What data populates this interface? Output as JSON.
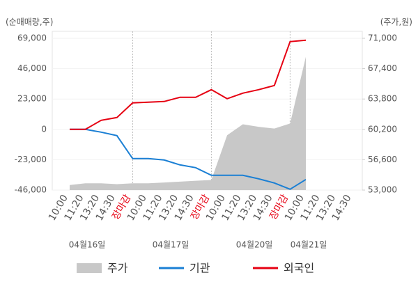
{
  "chart_data": {
    "type": "line",
    "y_axis_label": "(순매매량,주)",
    "y2_axis_label": "(주가,원)",
    "categories": [
      "10:00",
      "11:20",
      "13:20",
      "14:30",
      "장마감",
      "10:00",
      "11:20",
      "13:20",
      "14:30",
      "장마감",
      "10:00",
      "11:20",
      "13:20",
      "14:30",
      "장마감",
      "10:00",
      "11:20",
      "13:20",
      "14:30"
    ],
    "x_tick_label_colors": [
      "#555555",
      "#555555",
      "#555555",
      "#555555",
      "#e60012",
      "#555555",
      "#555555",
      "#555555",
      "#555555",
      "#e60012",
      "#555555",
      "#555555",
      "#555555",
      "#555555",
      "#e60012",
      "#555555",
      "#555555",
      "#555555",
      "#555555"
    ],
    "date_labels": [
      "04월16일",
      "04월17일",
      "04월20일",
      "04월21일"
    ],
    "series": [
      {
        "name": "주가",
        "color": "#c8c8c8",
        "type": "area",
        "axis": "y2",
        "values": [
          53600,
          53800,
          53800,
          53700,
          53800,
          53800,
          53900,
          54000,
          54100,
          54200,
          59500,
          60800,
          60500,
          60300,
          60900,
          68800,
          null,
          null,
          null
        ]
      },
      {
        "name": "기관",
        "color": "#1a7fd4",
        "values": [
          0,
          0,
          -2110,
          -4750,
          -22160,
          -22160,
          -23210,
          -26900,
          -29010,
          -34820,
          -34820,
          -34820,
          -37450,
          -40620,
          -45370,
          -37980,
          null,
          null,
          null
        ]
      },
      {
        "name": "외국인",
        "color": "#e60012",
        "values": [
          0,
          0,
          6860,
          8970,
          20050,
          20570,
          21100,
          24270,
          24270,
          30070,
          23210,
          27430,
          30070,
          33230,
          66470,
          67520,
          null,
          null,
          null
        ]
      }
    ],
    "ylim": [
      -46000,
      69000
    ],
    "yticks": [
      {
        "value": 69000,
        "label": "69,000"
      },
      {
        "value": 46000,
        "label": "46,000"
      },
      {
        "value": 23000,
        "label": "23,000"
      },
      0,
      {
        "value": -23000,
        "label": "-23,000"
      },
      {
        "value": -46000,
        "label": "-46,000"
      }
    ],
    "y2lim": [
      53000,
      71000
    ],
    "y2ticks": [
      {
        "value": 71000,
        "label": "71,000"
      },
      {
        "value": 67400,
        "label": "67,400"
      },
      {
        "value": 63800,
        "label": "63,800"
      },
      {
        "value": 60200,
        "label": "60,200"
      },
      {
        "value": 56600,
        "label": "56,600"
      },
      {
        "value": 53000,
        "label": "53,000"
      }
    ]
  }
}
